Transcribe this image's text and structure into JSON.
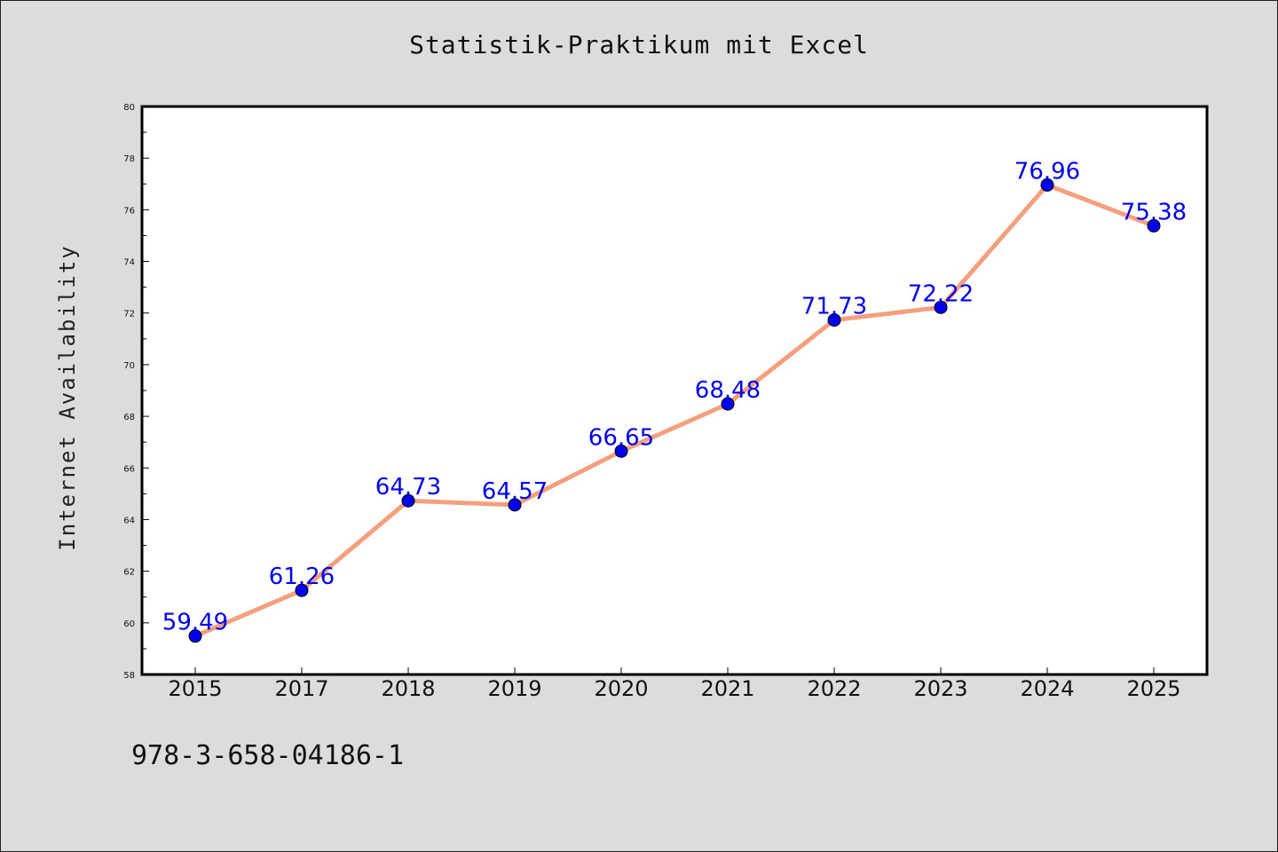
{
  "chart_data": {
    "type": "line",
    "title": "Statistik-Praktikum mit Excel",
    "xlabel": "",
    "ylabel": "Internet Availability",
    "footnote": "978-3-658-04186-1",
    "categories": [
      "2015",
      "2017",
      "2018",
      "2019",
      "2020",
      "2021",
      "2022",
      "2023",
      "2024",
      "2025"
    ],
    "series": [
      {
        "values": [
          59.49,
          61.26,
          64.73,
          64.57,
          66.65,
          68.48,
          71.73,
          72.22,
          76.96,
          75.38
        ],
        "labels": [
          "59.49",
          "61.26",
          "64.73",
          "64.57",
          "66.65",
          "68.48",
          "71.73",
          "72.22",
          "76.96",
          "75.38"
        ]
      }
    ],
    "ylim": [
      58,
      80
    ],
    "yticks": [
      58,
      60,
      62,
      64,
      66,
      68,
      70,
      72,
      74,
      76,
      78,
      80
    ],
    "grid": false,
    "colors": {
      "line": "#f4a07f",
      "marker": "#0000ee",
      "label": "#0000ee",
      "background": "#dcdcdc",
      "plot_background": "#ffffff"
    }
  }
}
